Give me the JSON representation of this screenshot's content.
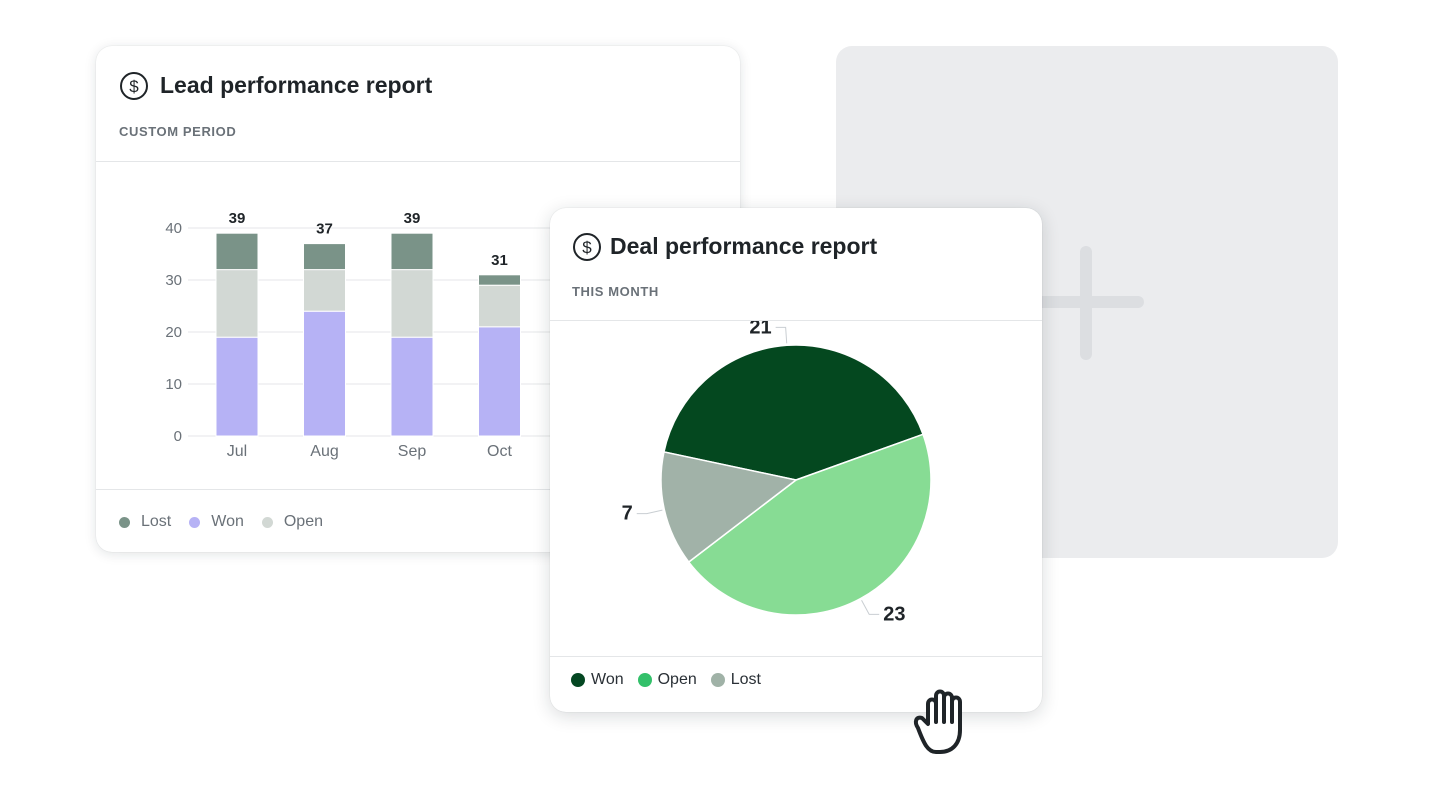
{
  "lead_report": {
    "title": "Lead performance report",
    "period": "CUSTOM PERIOD",
    "legend": [
      {
        "label": "Lost",
        "color": "#7a9388"
      },
      {
        "label": "Won",
        "color": "#b6b2f5"
      },
      {
        "label": "Open",
        "color": "#d2d8d4"
      }
    ]
  },
  "deal_report": {
    "title": "Deal performance report",
    "period": "THIS MONTH",
    "legend": [
      {
        "label": "Won",
        "color": "#044722"
      },
      {
        "label": "Open",
        "color": "#33c06a"
      },
      {
        "label": "Lost",
        "color": "#a0b2a7"
      }
    ]
  },
  "icons": {
    "title_icon": "dollar-circle-icon",
    "add_icon": "plus-icon",
    "cursor_icon": "grab-hand-icon"
  },
  "chart_data": [
    {
      "type": "bar",
      "stacked": true,
      "categories": [
        "Jul",
        "Aug",
        "Sep",
        "Oct"
      ],
      "series": [
        {
          "name": "Won",
          "values": [
            19,
            24,
            19,
            21
          ],
          "color": "#b6b2f5"
        },
        {
          "name": "Open",
          "values": [
            13,
            8,
            13,
            8
          ],
          "color": "#d2d8d4"
        },
        {
          "name": "Lost",
          "values": [
            7,
            5,
            7,
            2
          ],
          "color": "#7a9388"
        }
      ],
      "totals": [
        39,
        37,
        39,
        31
      ],
      "ylim": [
        0,
        40
      ],
      "yticks": [
        0,
        10,
        20,
        30,
        40
      ],
      "grid": true
    },
    {
      "type": "pie",
      "slices": [
        {
          "name": "Won",
          "value": 21,
          "label": "21",
          "color": "#04481f"
        },
        {
          "name": "Open",
          "value": 23,
          "label": "23",
          "color": "#87dc94"
        },
        {
          "name": "Lost",
          "value": 7,
          "label": "7",
          "color": "#a1b2a8"
        }
      ]
    }
  ]
}
